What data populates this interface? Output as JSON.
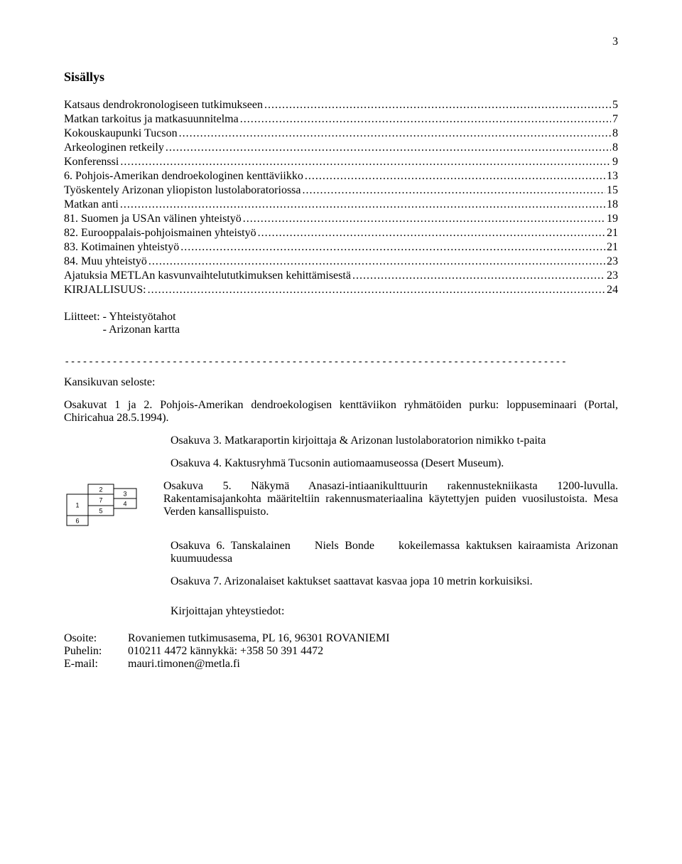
{
  "page_number": "3",
  "title": "Sisällys",
  "toc": [
    {
      "label": "Katsaus dendrokronologiseen tutkimukseen",
      "page": "5"
    },
    {
      "label": "Matkan tarkoitus ja matkasuunnitelma",
      "page": "7"
    },
    {
      "label": "Kokouskaupunki Tucson",
      "page": "8"
    },
    {
      "label": "Arkeologinen retkeily",
      "page": "8"
    },
    {
      "label": "Konferenssi",
      "page": "9"
    },
    {
      "label": "6. Pohjois-Amerikan dendroekologinen kenttäviikko",
      "page": "13"
    },
    {
      "label": "Työskentely Arizonan yliopiston lustolaboratoriossa",
      "page": "15"
    },
    {
      "label": "Matkan anti",
      "page": "18"
    },
    {
      "label": "81. Suomen ja USAn välinen yhteistyö",
      "page": "19"
    },
    {
      "label": "82. Eurooppalais-pohjoismainen yhteistyö",
      "page": "21"
    },
    {
      "label": "83. Kotimainen yhteistyö",
      "page": "21"
    },
    {
      "label": "84. Muu yhteistyö",
      "page": "23"
    },
    {
      "label": "Ajatuksia METLAn kasvunvaihtelututkimuksen kehittämisestä",
      "page": "23"
    },
    {
      "label": "KIRJALLISUUS:",
      "page": "24"
    }
  ],
  "attachments": {
    "label": "Liitteet:",
    "items": [
      "- Yhteistyötahot",
      "- Arizonan kartta"
    ]
  },
  "divider": "------------------------------------------------------------------------------------",
  "cover_label": "Kansikuvan seloste:",
  "osakuvat_intro": "Osakuvat 1 ja 2. Pohjois-Amerikan dendroekologisen kenttäviikon ryhmätöiden purku: loppuseminaari (Portal, Chiricahua 28.5.1994).",
  "osakuva3": "Osakuva 3. Matkaraportin kirjoittaja & Arizonan lustolaboratorion nimikko t-paita",
  "osakuva4": "Osakuva 4. Kaktusryhmä Tucsonin autiomaamuseossa (Desert Museum).",
  "osakuva5": "Osakuva 5. Näkymä Anasazi-intiaanikulttuurin rakennustekniikasta 1200-luvulla. Rakentamisajankohta määriteltiin rakennusmateriaalina käytettyjen puiden vuosilustoista. Mesa Verden kansallispuisto.",
  "osakuva6_pre": "Osakuva 6. Tanskalainen",
  "osakuva6_name": "Niels Bonde",
  "osakuva6_post": "kokeilemassa kaktuksen kairaamista Arizonan kuumuudessa",
  "osakuva7": "Osakuva 7. Arizonalaiset kaktukset saattavat kasvaa jopa 10 metrin korkuisiksi.",
  "diagram": {
    "cells": [
      "1",
      "2",
      "3",
      "4",
      "5",
      "6",
      "7"
    ],
    "stroke": "#000000",
    "font_size": 9
  },
  "contact_title": "Kirjoittajan yhteystiedot:",
  "contact": {
    "osoite_key": "Osoite:",
    "osoite_val": "Rovaniemen tutkimusasema, PL 16, 96301 ROVANIEMI",
    "puhelin_key": "Puhelin:",
    "puhelin_val": "010211 4472  kännykkä:  +358 50 391 4472",
    "email_key": "E-mail:",
    "email_val": "mauri.timonen@metla.fi"
  }
}
